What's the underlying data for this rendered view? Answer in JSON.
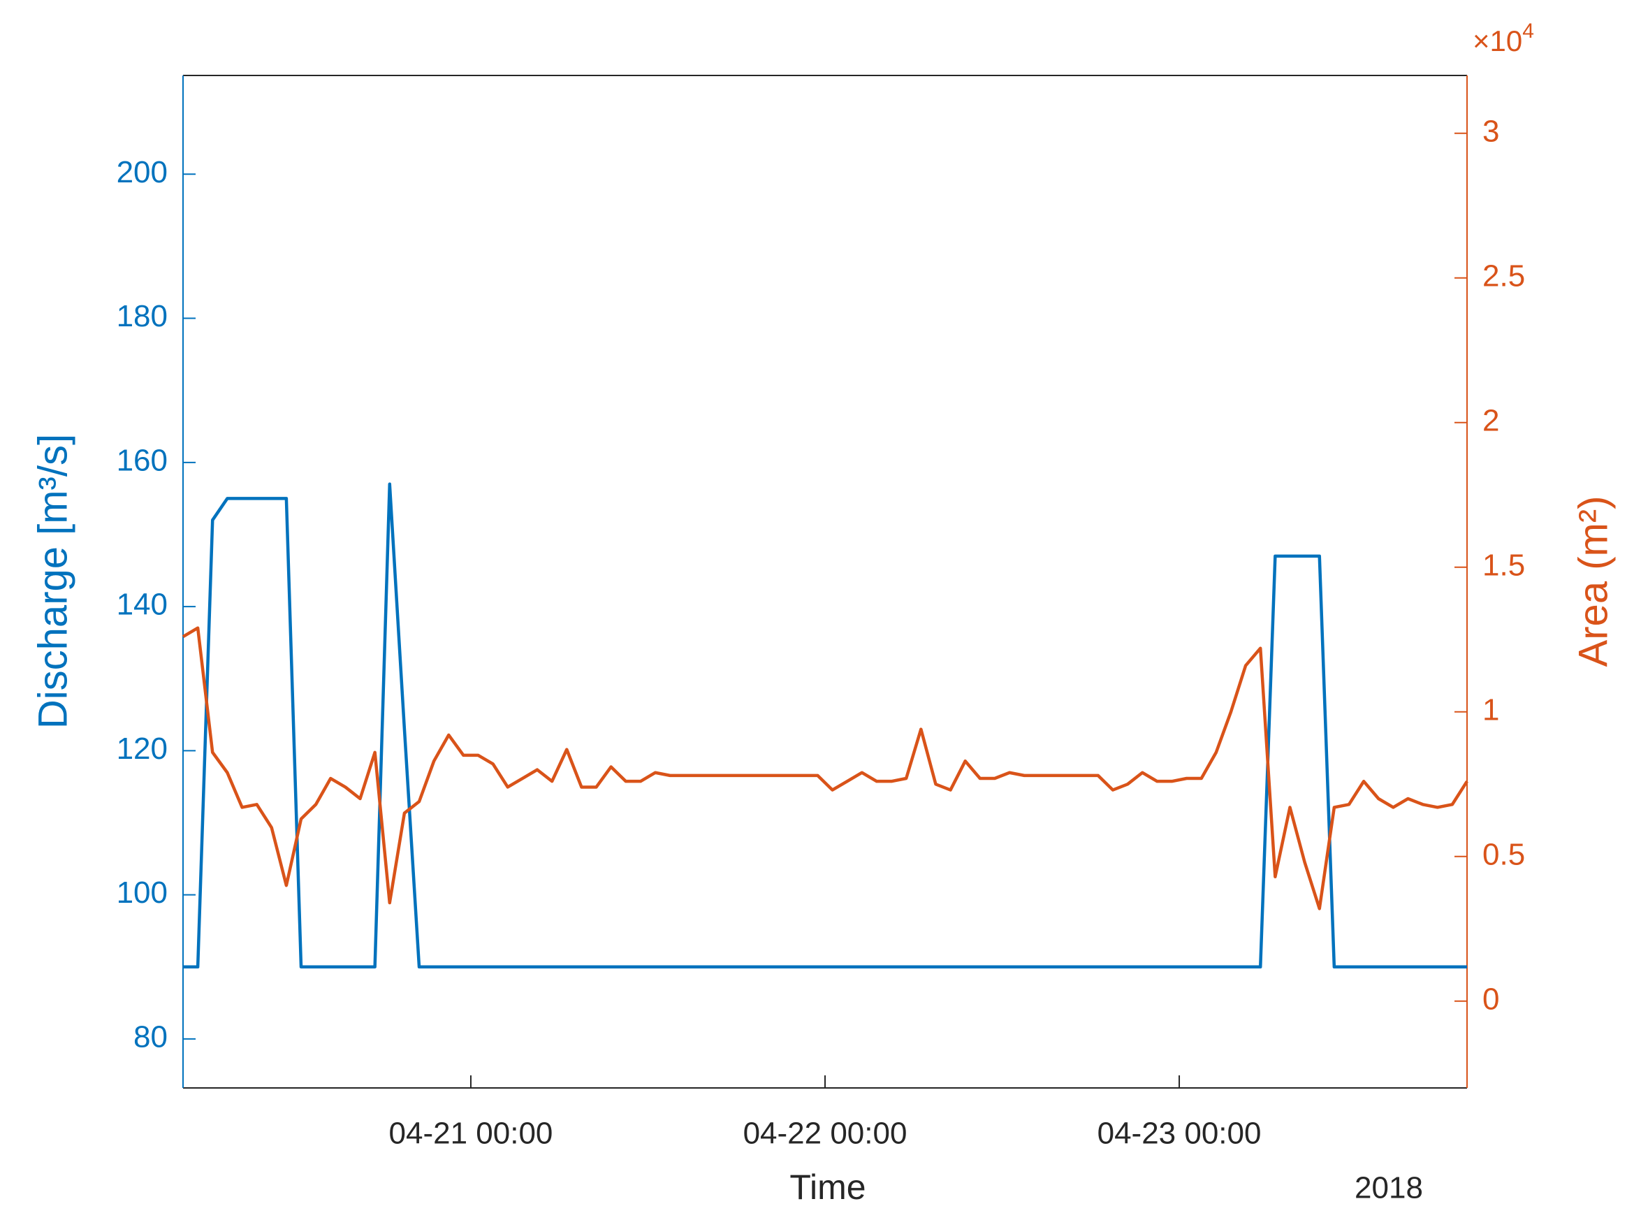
{
  "chart_data": {
    "type": "line",
    "xlabel": "Time",
    "x_secondary_label": "2018",
    "ylabel": "Discharge [m³/s]",
    "y2label": "Area (m²)",
    "y2_multiplier": {
      "base": "×10",
      "exponent": "4"
    },
    "x": [
      "2018-04-20 04:30",
      "2018-04-20 05:30",
      "2018-04-20 06:30",
      "2018-04-20 07:30",
      "2018-04-20 08:30",
      "2018-04-20 09:30",
      "2018-04-20 10:30",
      "2018-04-20 11:30",
      "2018-04-20 12:30",
      "2018-04-20 13:30",
      "2018-04-20 14:30",
      "2018-04-20 15:30",
      "2018-04-20 16:30",
      "2018-04-20 17:30",
      "2018-04-20 18:30",
      "2018-04-20 19:30",
      "2018-04-20 20:30",
      "2018-04-20 21:30",
      "2018-04-20 22:30",
      "2018-04-20 23:30",
      "2018-04-21 00:30",
      "2018-04-21 01:30",
      "2018-04-21 02:30",
      "2018-04-21 03:30",
      "2018-04-21 04:30",
      "2018-04-21 05:30",
      "2018-04-21 06:30",
      "2018-04-21 07:30",
      "2018-04-21 08:30",
      "2018-04-21 09:30",
      "2018-04-21 10:30",
      "2018-04-21 11:30",
      "2018-04-21 12:30",
      "2018-04-21 13:30",
      "2018-04-21 14:30",
      "2018-04-21 15:30",
      "2018-04-21 16:30",
      "2018-04-21 17:30",
      "2018-04-21 18:30",
      "2018-04-21 19:30",
      "2018-04-21 20:30",
      "2018-04-21 21:30",
      "2018-04-21 22:30",
      "2018-04-21 23:30",
      "2018-04-22 00:30",
      "2018-04-22 01:30",
      "2018-04-22 02:30",
      "2018-04-22 03:30",
      "2018-04-22 04:30",
      "2018-04-22 05:30",
      "2018-04-22 06:30",
      "2018-04-22 07:30",
      "2018-04-22 08:30",
      "2018-04-22 09:30",
      "2018-04-22 10:30",
      "2018-04-22 11:30",
      "2018-04-22 12:30",
      "2018-04-22 13:30",
      "2018-04-22 14:30",
      "2018-04-22 15:30",
      "2018-04-22 16:30",
      "2018-04-22 17:30",
      "2018-04-22 18:30",
      "2018-04-22 19:30",
      "2018-04-22 20:30",
      "2018-04-22 21:30",
      "2018-04-22 22:30",
      "2018-04-22 23:30",
      "2018-04-23 00:30",
      "2018-04-23 01:30",
      "2018-04-23 02:30",
      "2018-04-23 03:30",
      "2018-04-23 04:30",
      "2018-04-23 05:30",
      "2018-04-23 06:30",
      "2018-04-23 07:30",
      "2018-04-23 08:30",
      "2018-04-23 09:30",
      "2018-04-23 10:30",
      "2018-04-23 11:30",
      "2018-04-23 12:30",
      "2018-04-23 13:30",
      "2018-04-23 14:30",
      "2018-04-23 15:30",
      "2018-04-23 16:30",
      "2018-04-23 17:30",
      "2018-04-23 18:30",
      "2018-04-23 19:30"
    ],
    "series": [
      {
        "color": "#0072bd",
        "axis": "y",
        "values": [
          90,
          90,
          152,
          155,
          155,
          155,
          155,
          155,
          90,
          90,
          90,
          90,
          90,
          90,
          157,
          123,
          90,
          90,
          90,
          90,
          90,
          90,
          90,
          90,
          90,
          90,
          90,
          90,
          90,
          90,
          90,
          90,
          90,
          90,
          90,
          90,
          90,
          90,
          90,
          90,
          90,
          90,
          90,
          90,
          90,
          90,
          90,
          90,
          90,
          90,
          90,
          90,
          90,
          90,
          90,
          90,
          90,
          90,
          90,
          90,
          90,
          90,
          90,
          90,
          90,
          90,
          90,
          90,
          90,
          90,
          90,
          90,
          90,
          90,
          147,
          147,
          147,
          147,
          90,
          90,
          90,
          90,
          90,
          90,
          90,
          90,
          90,
          90
        ]
      },
      {
        "color": "#d95319",
        "axis": "y2",
        "values": [
          1.26,
          1.29,
          0.86,
          0.79,
          0.67,
          0.68,
          0.6,
          0.4,
          0.63,
          0.68,
          0.77,
          0.74,
          0.7,
          0.86,
          0.34,
          0.65,
          0.69,
          0.83,
          0.92,
          0.85,
          0.85,
          0.82,
          0.74,
          0.77,
          0.8,
          0.76,
          0.87,
          0.74,
          0.74,
          0.81,
          0.76,
          0.76,
          0.79,
          0.78,
          0.78,
          0.78,
          0.78,
          0.78,
          0.78,
          0.78,
          0.78,
          0.78,
          0.78,
          0.78,
          0.73,
          0.76,
          0.79,
          0.76,
          0.76,
          0.77,
          0.94,
          0.75,
          0.73,
          0.83,
          0.77,
          0.77,
          0.79,
          0.78,
          0.78,
          0.78,
          0.78,
          0.78,
          0.78,
          0.73,
          0.75,
          0.79,
          0.76,
          0.76,
          0.77,
          0.77,
          0.86,
          1.0,
          1.16,
          1.22,
          0.43,
          0.67,
          0.48,
          0.32,
          0.67,
          0.68,
          0.76,
          0.7,
          0.67,
          0.7,
          0.68,
          0.67,
          0.68,
          0.76
        ]
      }
    ],
    "xlim": [
      "2018-04-20 04:30",
      "2018-04-23 19:30"
    ],
    "xticks": [
      {
        "value": "2018-04-21 00:00",
        "label": "04-21 00:00"
      },
      {
        "value": "2018-04-22 00:00",
        "label": "04-22 00:00"
      },
      {
        "value": "2018-04-23 00:00",
        "label": "04-23 00:00"
      }
    ],
    "ylim": [
      73.2,
      213.7
    ],
    "yticks": [
      80,
      100,
      120,
      140,
      160,
      180,
      200
    ],
    "y2lim": [
      -0.3,
      3.2
    ],
    "y2ticks": [
      0,
      0.5,
      1,
      1.5,
      2,
      2.5,
      3
    ],
    "grid": false
  }
}
